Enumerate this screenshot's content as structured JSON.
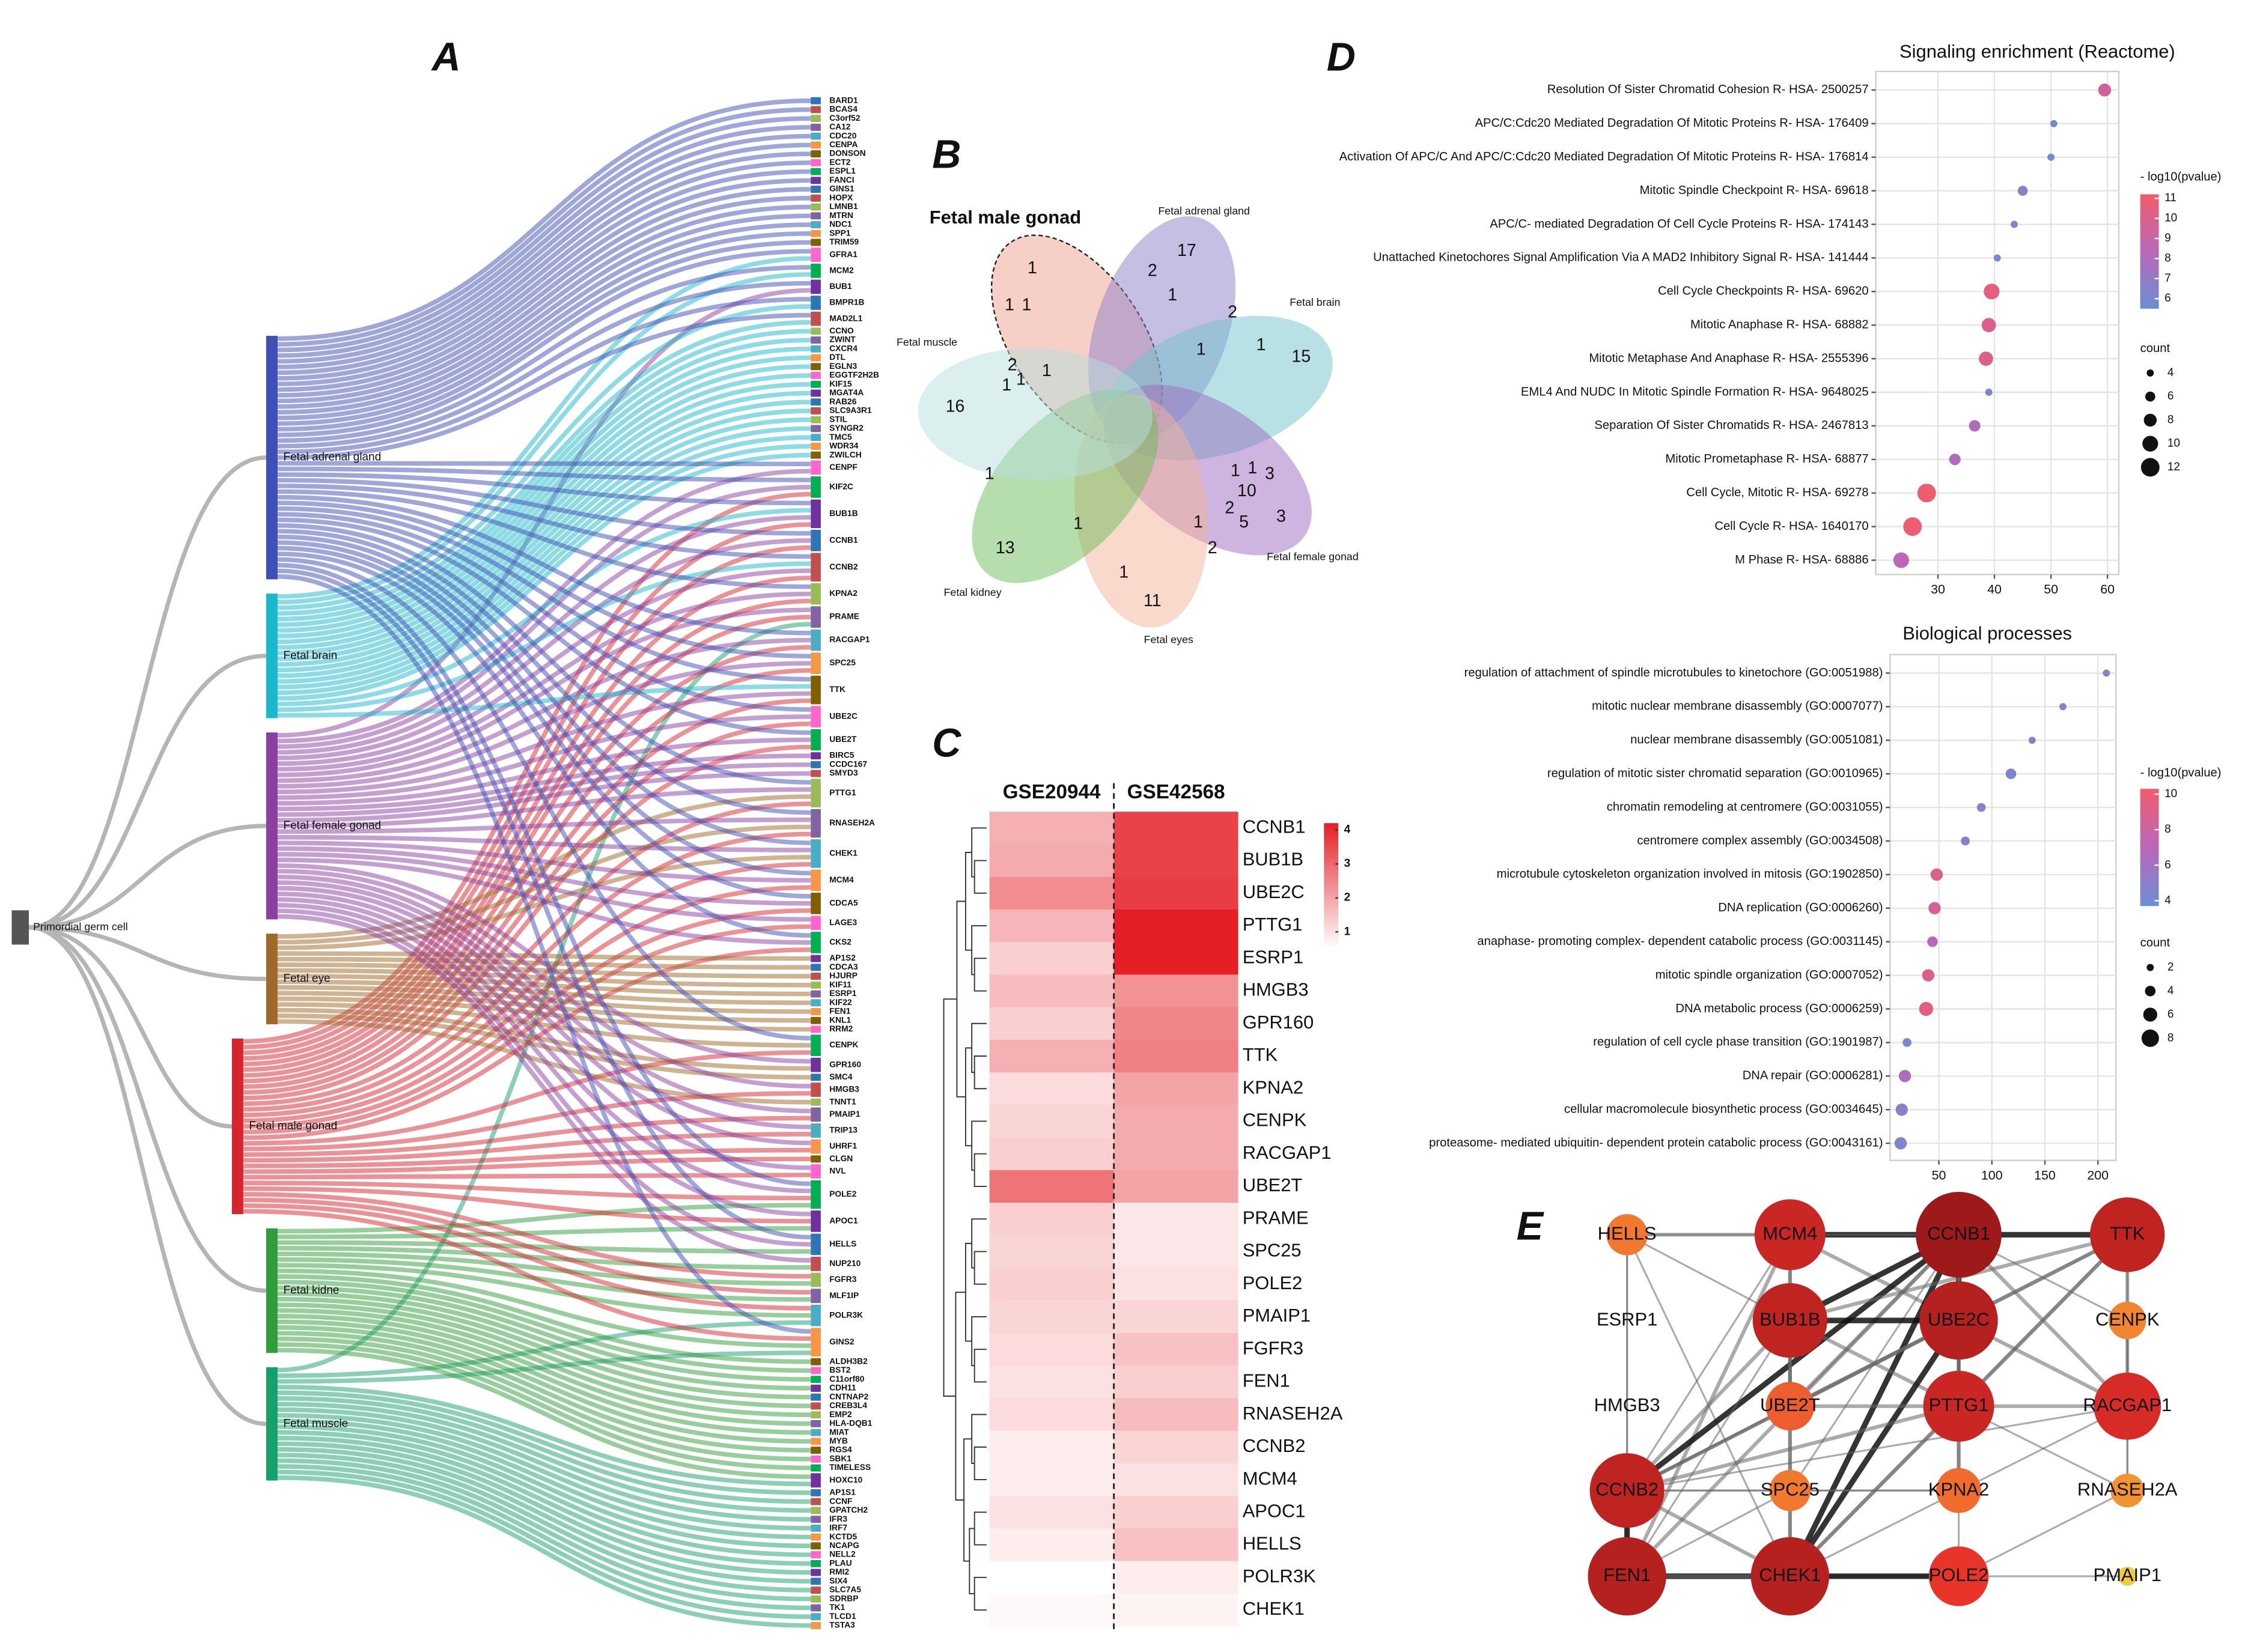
{
  "chart_data": [
    {
      "type": "sankey",
      "panel_label": "A",
      "source": "Primordial germ cell",
      "tissues": [
        "Fetal adrenal gland",
        "Fetal brain",
        "Fetal female gonad",
        "Fetal eye",
        "Fetal male gonad",
        "Fetal kidne",
        "Fetal muscle"
      ],
      "tissue_colors": [
        "#3f4fb5",
        "#1ab8cc",
        "#8b3fa0",
        "#a0692a",
        "#d6262d",
        "#2f9e3a",
        "#16a06e"
      ],
      "gene_palette": [
        "#2e75b6",
        "#c0504d",
        "#9bbb59",
        "#8064a2",
        "#4bacc6",
        "#f79646",
        "#7f6000",
        "#ff66cc",
        "#00b050",
        "#7030a0"
      ],
      "genes": [
        "BARD1",
        "BCAS4",
        "C3orf52",
        "CA12",
        "CDC20",
        "CENPA",
        "DONSON",
        "ECT2",
        "ESPL1",
        "FANCI",
        "GINS1",
        "HOPX",
        "LMNB1",
        "MTRN",
        "NDC1",
        "SPP1",
        "TRIM59",
        "GFRA1",
        "MCM2",
        "BUB1",
        "BMPR1B",
        "MAD2L1",
        "CCNO",
        "ZWINT",
        "CXCR4",
        "DTL",
        "EGLN3",
        "EGGTF2H2B",
        "KIF15",
        "MGAT4A",
        "RAB26",
        "SLC9A3R1",
        "STIL",
        "SYNGR2",
        "TMC5",
        "WDR34",
        "ZWILCH",
        "CENPF",
        "KIF2C",
        "BUB1B",
        "CCNB1",
        "CCNB2",
        "KPNA2",
        "PRAME",
        "RACGAP1",
        "SPC25",
        "TTK",
        "UBE2C",
        "UBE2T",
        "BIRC5",
        "CCDC167",
        "SMYD3",
        "PTTG1",
        "RNASEH2A",
        "CHEK1",
        "MCM4",
        "CDCA5",
        "LAGE3",
        "CKS2",
        "AP1S2",
        "CDCA3",
        "HJURP",
        "KIF11",
        "ESRP1",
        "KIF22",
        "FEN1",
        "KNL1",
        "RRM2",
        "CENPK",
        "GPR160",
        "SMC4",
        "HMGB3",
        "TNNT1",
        "PMAIP1",
        "TRIP13",
        "UHRF1",
        "CLGN",
        "NVL",
        "POLE2",
        "APOC1",
        "HELLS",
        "NUP210",
        "FGFR3",
        "MLF1IP",
        "POLR3K",
        "GINS2",
        "ALDH3B2",
        "BST2",
        "C11orf80",
        "CDH11",
        "CNTNAP2",
        "CREB3L4",
        "EMP2",
        "HLA-DQB1",
        "MIAT",
        "MYB",
        "RGS4",
        "SBK1",
        "TIMELESS",
        "HOXC10",
        "AP1S1",
        "CCNF",
        "GPATCH2",
        "IFR3",
        "IRF7",
        "KCTD5",
        "NCAPG",
        "NELL2",
        "PLAU",
        "RMI2",
        "SIX4",
        "SLC7A5",
        "SDRBP",
        "TK1",
        "TLCD1",
        "TSTA3"
      ],
      "gene_tissues": [
        [
          0
        ],
        [
          0
        ],
        [
          0
        ],
        [
          0
        ],
        [
          0
        ],
        [
          0
        ],
        [
          0
        ],
        [
          0
        ],
        [
          0
        ],
        [
          0
        ],
        [
          0
        ],
        [
          0
        ],
        [
          0
        ],
        [
          0
        ],
        [
          0
        ],
        [
          0
        ],
        [
          0
        ],
        [
          0,
          1
        ],
        [
          0,
          1
        ],
        [
          0,
          2
        ],
        [
          0,
          1
        ],
        [
          0,
          1
        ],
        [
          1
        ],
        [
          1
        ],
        [
          1
        ],
        [
          1
        ],
        [
          1
        ],
        [
          1
        ],
        [
          1
        ],
        [
          1
        ],
        [
          1
        ],
        [
          1
        ],
        [
          1
        ],
        [
          1
        ],
        [
          1
        ],
        [
          1
        ],
        [
          1
        ],
        [
          0,
          2
        ],
        [
          0,
          2,
          4
        ],
        [
          0,
          1,
          2,
          4
        ],
        [
          0,
          2,
          4
        ],
        [
          0,
          1,
          2,
          4
        ],
        [
          0,
          2,
          4
        ],
        [
          2,
          4,
          6
        ],
        [
          0,
          2,
          4
        ],
        [
          0,
          2,
          4
        ],
        [
          0,
          1,
          2,
          4
        ],
        [
          0,
          2,
          4
        ],
        [
          0,
          2,
          4
        ],
        [
          2
        ],
        [
          2
        ],
        [
          2
        ],
        [
          0,
          2,
          3,
          4
        ],
        [
          0,
          2,
          3,
          4
        ],
        [
          0,
          2,
          3,
          4
        ],
        [
          0,
          2,
          4
        ],
        [
          0,
          2,
          4
        ],
        [
          2,
          4
        ],
        [
          0,
          2,
          4
        ],
        [
          3
        ],
        [
          3
        ],
        [
          3
        ],
        [
          3
        ],
        [
          3
        ],
        [
          3
        ],
        [
          3
        ],
        [
          3
        ],
        [
          3
        ],
        [
          0,
          3,
          4
        ],
        [
          2,
          3
        ],
        [
          3
        ],
        [
          2,
          4
        ],
        [
          3
        ],
        [
          2,
          4
        ],
        [
          2,
          4
        ],
        [
          2,
          4
        ],
        [
          4
        ],
        [
          2,
          4
        ],
        [
          0,
          2,
          4,
          5
        ],
        [
          2,
          4,
          5
        ],
        [
          0,
          2,
          5
        ],
        [
          2,
          5
        ],
        [
          4,
          5
        ],
        [
          4,
          5
        ],
        [
          4,
          5,
          6
        ],
        [
          0,
          4,
          5,
          6
        ],
        [
          5
        ],
        [
          5
        ],
        [
          5
        ],
        [
          5
        ],
        [
          5
        ],
        [
          5
        ],
        [
          5
        ],
        [
          5
        ],
        [
          5
        ],
        [
          5
        ],
        [
          5
        ],
        [
          5
        ],
        [
          5
        ],
        [
          5,
          6
        ],
        [
          6
        ],
        [
          6
        ],
        [
          6
        ],
        [
          6
        ],
        [
          6
        ],
        [
          6
        ],
        [
          6
        ],
        [
          6
        ],
        [
          6
        ],
        [
          6
        ],
        [
          6
        ],
        [
          6
        ],
        [
          6
        ],
        [
          6
        ],
        [
          6
        ],
        [
          6
        ]
      ]
    },
    {
      "type": "venn",
      "panel_label": "B",
      "sets": [
        "Fetal male gonad",
        "Fetal adrenal gland",
        "Fetal brain",
        "Fetal female gonad",
        "Fetal eyes",
        "Fetal kidney",
        "Fetal muscle"
      ],
      "set_colors": [
        "#eea08e",
        "#8c7fc9",
        "#6fc4c9",
        "#9e6bbf",
        "#f3b49a",
        "#6dbb5a",
        "#b8e0de"
      ],
      "counts": [
        1,
        17,
        2,
        1,
        2,
        1,
        1,
        15,
        1,
        1,
        2,
        1,
        1,
        1,
        16,
        1,
        1,
        1,
        3,
        10,
        2,
        5,
        3,
        1,
        1,
        2,
        13,
        1,
        11
      ]
    },
    {
      "type": "heatmap",
      "panel_label": "C",
      "columns": [
        "GSE20944",
        "GSE42568"
      ],
      "rows": [
        "CCNB1",
        "BUB1B",
        "UBE2C",
        "PTTG1",
        "ESRP1",
        "HMGB3",
        "GPR160",
        "TTK",
        "KPNA2",
        "CENPK",
        "RACGAP1",
        "UBE2T",
        "PRAME",
        "SPC25",
        "POLE2",
        "PMAIP1",
        "FGFR3",
        "FEN1",
        "RNASEH2A",
        "CCNB2",
        "MCM4",
        "APOC1",
        "HELLS",
        "POLR3K",
        "CHEK1"
      ],
      "values": [
        [
          1.8,
          3.6
        ],
        [
          1.9,
          3.6
        ],
        [
          2.4,
          3.7
        ],
        [
          1.7,
          4.2
        ],
        [
          1.3,
          4.2
        ],
        [
          1.6,
          2.3
        ],
        [
          1.3,
          2.5
        ],
        [
          1.8,
          2.6
        ],
        [
          1.1,
          2.0
        ],
        [
          1.2,
          1.9
        ],
        [
          1.3,
          1.9
        ],
        [
          2.8,
          2.0
        ],
        [
          1.3,
          0.9
        ],
        [
          1.2,
          0.9
        ],
        [
          1.3,
          1.0
        ],
        [
          1.2,
          1.2
        ],
        [
          1.1,
          1.5
        ],
        [
          1.0,
          1.3
        ],
        [
          1.1,
          1.6
        ],
        [
          0.8,
          1.2
        ],
        [
          0.8,
          1.0
        ],
        [
          1.0,
          1.3
        ],
        [
          0.8,
          1.5
        ],
        [
          0.5,
          0.8
        ],
        [
          0.6,
          0.7
        ]
      ],
      "zlim": [
        0.5,
        4.2
      ],
      "zticks": [
        1,
        2,
        3,
        4
      ],
      "colors": [
        "#ffffff",
        "#e41f26"
      ]
    },
    {
      "type": "dot",
      "panel_label": "D",
      "title": "Signaling enrichment (Reactome)",
      "categories": [
        "Resolution Of Sister Chromatid Cohesion R- HSA- 2500257",
        "APC/C:Cdc20 Mediated Degradation Of Mitotic Proteins R- HSA- 176409",
        "Activation Of APC/C And APC/C:Cdc20 Mediated Degradation Of Mitotic Proteins R- HSA- 176814",
        "Mitotic Spindle Checkpoint R- HSA- 69618",
        "APC/C- mediated Degradation Of Cell Cycle Proteins R- HSA- 174143",
        "Unattached Kinetochores Signal Amplification Via A MAD2 Inhibitory Signal R- HSA- 141444",
        "Cell Cycle Checkpoints R- HSA- 69620",
        "Mitotic Anaphase R- HSA- 68882",
        "Mitotic Metaphase And Anaphase R- HSA- 2555396",
        "EML4 And NUDC In Mitotic Spindle Formation R- HSA- 9648025",
        "Separation Of Sister Chromatids R- HSA- 2467813",
        "Mitotic Prometaphase R- HSA- 68877",
        "Cell Cycle, Mitotic R- HSA- 69278",
        "Cell Cycle R- HSA- 1640170",
        "M Phase R- HSA- 68886"
      ],
      "values": [
        59.5,
        50.5,
        50,
        45,
        43.5,
        40.5,
        39.5,
        39,
        38.5,
        39,
        36.5,
        33,
        28,
        25.5,
        23.5
      ],
      "color_values": [
        9.5,
        6,
        6,
        6.5,
        6,
        6,
        10.5,
        10,
        10,
        6,
        8,
        8,
        11,
        11,
        8.5
      ],
      "sizes": [
        8,
        4,
        4,
        6,
        4,
        4,
        10,
        9,
        9,
        4,
        7,
        7,
        12,
        12,
        10
      ],
      "xlim": [
        19,
        62
      ],
      "xticks": [
        30,
        40,
        50,
        60
      ],
      "color_title": "- log10(pvalue)",
      "clim": [
        5.5,
        11.2
      ],
      "cticks": [
        6,
        7,
        8,
        9,
        10,
        11
      ],
      "colors": [
        "#6a8fd4",
        "#b868b8",
        "#f25c6a"
      ],
      "size_title": "count",
      "size_ticks": [
        4,
        6,
        8,
        10,
        12
      ],
      "grid": true
    },
    {
      "type": "dot",
      "title": "Biological processes",
      "categories": [
        "regulation of attachment of spindle microtubules to kinetochore (GO:0051988)",
        "mitotic nuclear membrane disassembly (GO:0007077)",
        "nuclear membrane disassembly (GO:0051081)",
        "regulation of mitotic sister chromatid separation (GO:0010965)",
        "chromatin remodeling at centromere (GO:0031055)",
        "centromere complex assembly (GO:0034508)",
        "microtubule cytoskeleton organization involved in mitosis (GO:1902850)",
        "DNA replication (GO:0006260)",
        "anaphase- promoting complex- dependent catabolic process (GO:0031145)",
        "mitotic spindle organization (GO:0007052)",
        "DNA metabolic process (GO:0006259)",
        "regulation of cell cycle phase transition (GO:1901987)",
        "DNA repair (GO:0006281)",
        "cellular macromolecule biosynthetic process (GO:0034645)",
        "proteasome- mediated ubiquitin- dependent protein catabolic process (GO:0043161)"
      ],
      "values": [
        208,
        167,
        138,
        118,
        90,
        75,
        48,
        46,
        44,
        40,
        38,
        20,
        18,
        15,
        14
      ],
      "color_values": [
        4.5,
        4.5,
        4.5,
        4.5,
        5,
        5,
        9,
        8.5,
        7,
        9,
        9.5,
        4.5,
        6.5,
        5,
        4.5
      ],
      "sizes": [
        2,
        2,
        2,
        4,
        3,
        3,
        5,
        5,
        4,
        5,
        6,
        3,
        5,
        5,
        5
      ],
      "xlim": [
        4,
        217
      ],
      "xticks": [
        50,
        100,
        150,
        200
      ],
      "color_title": "- log10(pvalue)",
      "clim": [
        3.7,
        10.3
      ],
      "cticks": [
        4,
        6,
        8,
        10
      ],
      "colors": [
        "#6a8fd4",
        "#b868b8",
        "#f25c6a"
      ],
      "size_title": "count",
      "size_ticks": [
        2,
        4,
        6,
        8
      ],
      "grid": true
    },
    {
      "type": "network",
      "panel_label": "E",
      "nodes": [
        "HELLS",
        "MCM4",
        "CCNB1",
        "TTK",
        "ESRP1",
        "BUB1B",
        "UBE2C",
        "CENPK",
        "HMGB3",
        "UBE2T",
        "PTTG1",
        "RACGAP1",
        "CCNB2",
        "SPC25",
        "KPNA2",
        "RNASEH2A",
        "FEN1",
        "CHEK1",
        "POLE2",
        "PMAIP1"
      ],
      "values": [
        8,
        16,
        20,
        17,
        0,
        17,
        18,
        7,
        0,
        10,
        16,
        15,
        17,
        8,
        9,
        6,
        18,
        18,
        13,
        2
      ],
      "colors": [
        "#f5e642",
        "#f28a30",
        "#e8302a",
        "#9e1a1a"
      ],
      "edges": [
        [
          1,
          2,
          3
        ],
        [
          2,
          3,
          3
        ],
        [
          0,
          1,
          2
        ],
        [
          0,
          2,
          1
        ],
        [
          0,
          5,
          1
        ],
        [
          0,
          12,
          1
        ],
        [
          0,
          16,
          1
        ],
        [
          0,
          17,
          1
        ],
        [
          1,
          5,
          2
        ],
        [
          1,
          6,
          2
        ],
        [
          1,
          16,
          2
        ],
        [
          1,
          17,
          2
        ],
        [
          1,
          12,
          1
        ],
        [
          2,
          5,
          3
        ],
        [
          2,
          6,
          3
        ],
        [
          2,
          10,
          2
        ],
        [
          2,
          11,
          2
        ],
        [
          2,
          12,
          3
        ],
        [
          2,
          16,
          2
        ],
        [
          2,
          17,
          3
        ],
        [
          2,
          9,
          2
        ],
        [
          2,
          13,
          1
        ],
        [
          2,
          14,
          2
        ],
        [
          2,
          7,
          1
        ],
        [
          3,
          5,
          2
        ],
        [
          3,
          6,
          2
        ],
        [
          3,
          10,
          2
        ],
        [
          3,
          11,
          2
        ],
        [
          3,
          7,
          1
        ],
        [
          3,
          12,
          2
        ],
        [
          3,
          17,
          2
        ],
        [
          5,
          6,
          3
        ],
        [
          5,
          10,
          2
        ],
        [
          5,
          12,
          2
        ],
        [
          5,
          9,
          2
        ],
        [
          5,
          17,
          2
        ],
        [
          5,
          16,
          1
        ],
        [
          6,
          10,
          2
        ],
        [
          6,
          11,
          2
        ],
        [
          6,
          12,
          2
        ],
        [
          6,
          9,
          2
        ],
        [
          6,
          17,
          3
        ],
        [
          6,
          14,
          2
        ],
        [
          9,
          12,
          1
        ],
        [
          9,
          10,
          2
        ],
        [
          10,
          11,
          2
        ],
        [
          10,
          12,
          2
        ],
        [
          10,
          17,
          2
        ],
        [
          11,
          12,
          1
        ],
        [
          11,
          17,
          1
        ],
        [
          12,
          16,
          3
        ],
        [
          12,
          17,
          2
        ],
        [
          12,
          13,
          1
        ],
        [
          12,
          14,
          1
        ],
        [
          16,
          17,
          3
        ],
        [
          16,
          18,
          2
        ],
        [
          17,
          18,
          3
        ],
        [
          13,
          14,
          1
        ],
        [
          14,
          18,
          1
        ],
        [
          7,
          11,
          1
        ],
        [
          15,
          10,
          1
        ],
        [
          15,
          18,
          1
        ],
        [
          18,
          19,
          1
        ],
        [
          16,
          13,
          1
        ],
        [
          11,
          15,
          1
        ],
        [
          7,
          15,
          1
        ]
      ]
    }
  ]
}
